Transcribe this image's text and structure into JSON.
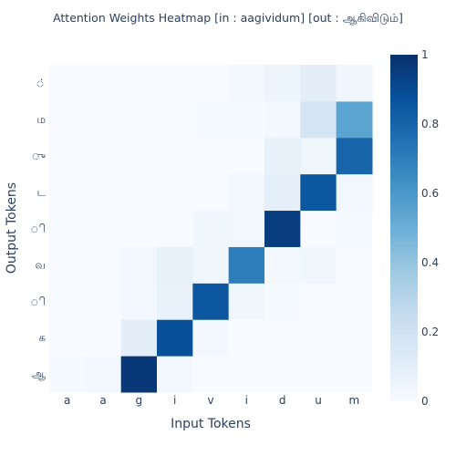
{
  "chart_data": {
    "type": "heatmap",
    "title": "Attention Weights Heatmap [in : aagividum] [out : ஆகிவிடும்]",
    "xlabel": "Input Tokens",
    "ylabel": "Output Tokens",
    "x_categories": [
      "a",
      "a",
      "g",
      "i",
      "v",
      "i",
      "d",
      "u",
      "m"
    ],
    "y_categories": [
      "ஆ",
      "க",
      "ி",
      "வ",
      "ி",
      "ட",
      "ு",
      "ம",
      "்"
    ],
    "z": [
      [
        0.01,
        0.02,
        0.97,
        0.02,
        0.0,
        0.0,
        0.0,
        0.0,
        0.0
      ],
      [
        0.0,
        0.0,
        0.1,
        0.88,
        0.02,
        0.0,
        0.0,
        0.0,
        0.0
      ],
      [
        0.0,
        0.0,
        0.03,
        0.07,
        0.85,
        0.04,
        0.01,
        0.0,
        0.0
      ],
      [
        0.0,
        0.0,
        0.03,
        0.08,
        0.04,
        0.7,
        0.02,
        0.04,
        0.0
      ],
      [
        0.0,
        0.0,
        0.0,
        0.0,
        0.04,
        0.03,
        0.95,
        0.0,
        0.01
      ],
      [
        0.0,
        0.0,
        0.0,
        0.0,
        0.0,
        0.03,
        0.09,
        0.85,
        0.03
      ],
      [
        0.0,
        0.0,
        0.0,
        0.0,
        0.0,
        0.0,
        0.08,
        0.04,
        0.8
      ],
      [
        0.0,
        0.0,
        0.0,
        0.0,
        0.01,
        0.01,
        0.02,
        0.17,
        0.55
      ],
      [
        0.0,
        0.0,
        0.0,
        0.0,
        0.0,
        0.02,
        0.05,
        0.1,
        0.04
      ]
    ],
    "colorscale": "Blues",
    "zmin": 0,
    "zmax": 1,
    "colorbar_ticks": [
      "0",
      "0.2",
      "0.4",
      "0.6",
      "0.8",
      "1"
    ]
  }
}
